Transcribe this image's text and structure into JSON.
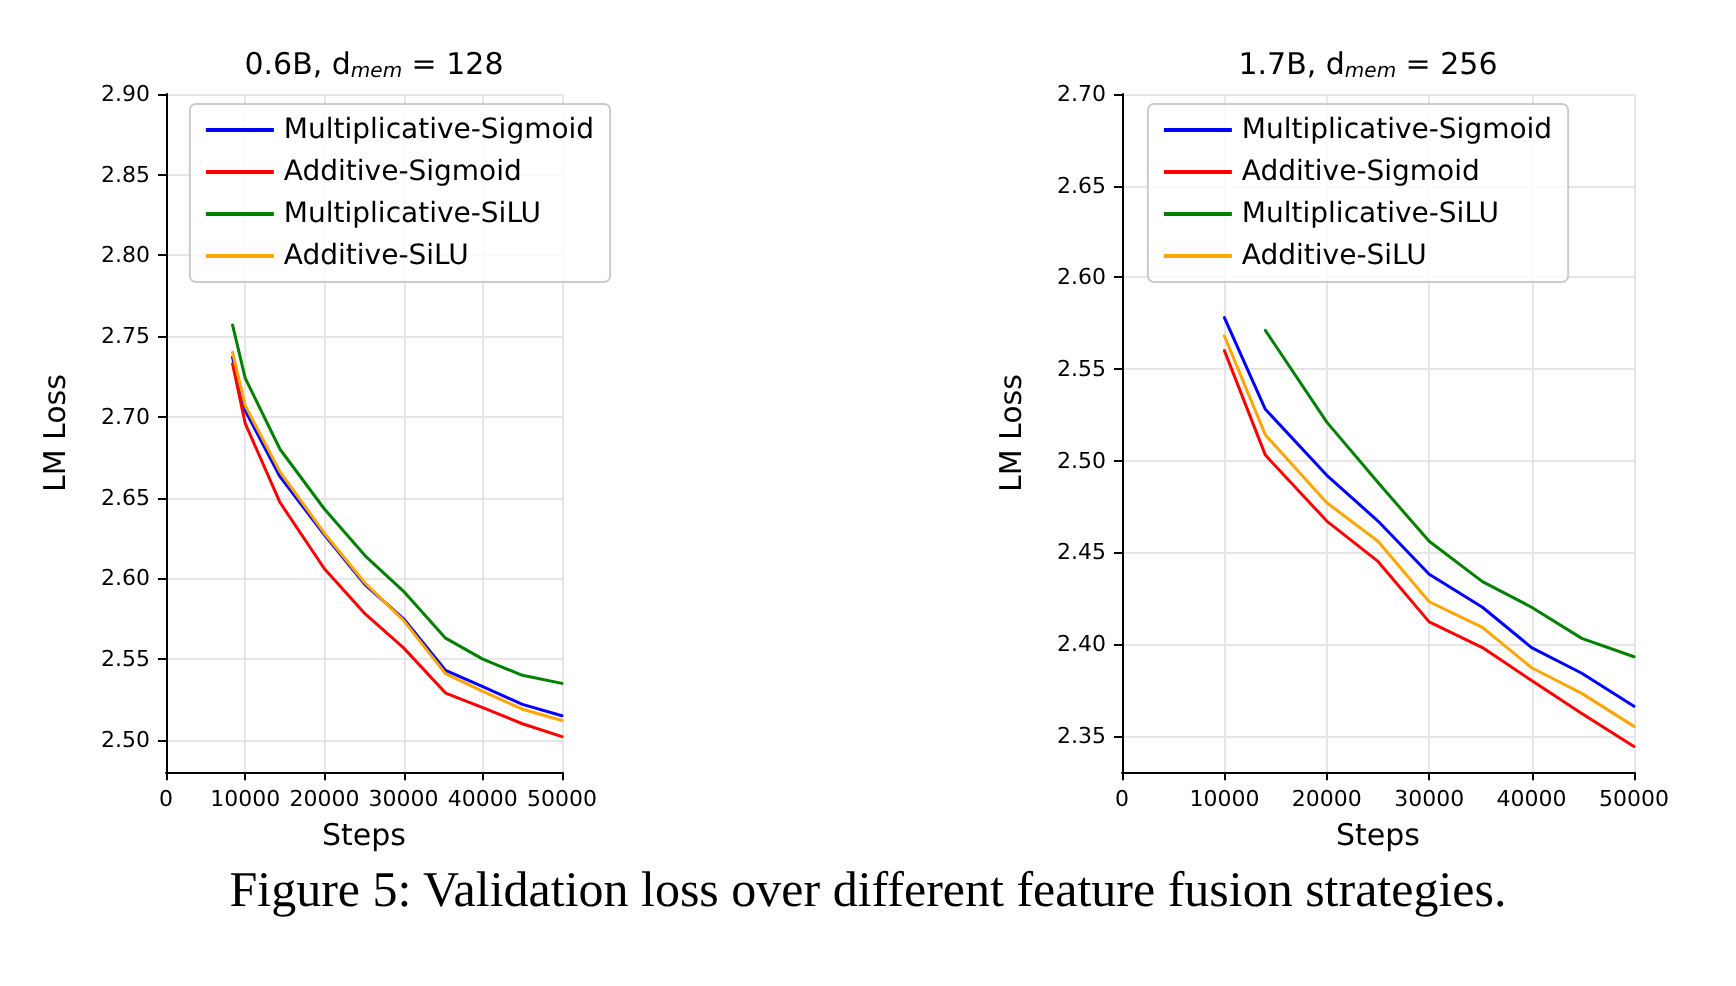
{
  "chart_data": [
    {
      "type": "line",
      "title": "0.6B, d$_{mem}$ = 128",
      "xlabel": "Steps",
      "ylabel": "LM Loss",
      "xlim": [
        0,
        50000
      ],
      "ylim": [
        2.48,
        2.9
      ],
      "xticks": [
        0,
        10000,
        20000,
        30000,
        40000,
        50000
      ],
      "yticks": [
        {
          "value": 2.5,
          "label": "2.50"
        },
        {
          "value": 2.55,
          "label": "2.55"
        },
        {
          "value": 2.6,
          "label": "2.60"
        },
        {
          "value": 2.65,
          "label": "2.65"
        },
        {
          "value": 2.7,
          "label": "2.70"
        },
        {
          "value": 2.75,
          "label": "2.75"
        },
        {
          "value": 2.8,
          "label": "2.80"
        },
        {
          "value": 2.85,
          "label": "2.85"
        },
        {
          "value": 2.9,
          "label": "2.90"
        }
      ],
      "grid": true,
      "legend": "top",
      "line_style": "solid",
      "marker": "none",
      "annotations": [
        "Figure 5: Validation loss over different feature fusion strategies."
      ],
      "x": [
        8400,
        10000,
        14400,
        20000,
        25150,
        30000,
        35300,
        40000,
        45000,
        50000
      ],
      "series": [
        {
          "name": "Multiplicative-Sigmoid",
          "color": "#0000ff",
          "values": [
            2.737,
            2.704,
            2.663,
            2.627,
            2.596,
            2.575,
            2.543,
            2.533,
            2.522,
            2.515
          ]
        },
        {
          "name": "Additive-Sigmoid",
          "color": "#ff0000",
          "values": [
            2.733,
            2.696,
            2.647,
            2.606,
            2.578,
            2.557,
            2.529,
            2.52,
            2.51,
            2.502
          ]
        },
        {
          "name": "Multiplicative-SiLU",
          "color": "#008000",
          "values": [
            2.757,
            2.724,
            2.68,
            2.643,
            2.614,
            2.592,
            2.563,
            2.55,
            2.54,
            2.535
          ]
        },
        {
          "name": "Additive-SiLU",
          "color": "#ffa500",
          "values": [
            2.74,
            2.707,
            2.666,
            2.628,
            2.597,
            2.574,
            2.541,
            2.53,
            2.519,
            2.512
          ]
        }
      ]
    },
    {
      "type": "line",
      "title": "1.7B, d$_{mem}$ = 256",
      "xlabel": "Steps",
      "ylabel": "LM Loss",
      "xlim": [
        0,
        50000
      ],
      "ylim": [
        2.33,
        2.7
      ],
      "xticks": [
        0,
        10000,
        20000,
        30000,
        40000,
        50000
      ],
      "yticks": [
        {
          "value": 2.35,
          "label": "2.35"
        },
        {
          "value": 2.4,
          "label": "2.40"
        },
        {
          "value": 2.45,
          "label": "2.45"
        },
        {
          "value": 2.5,
          "label": "2.50"
        },
        {
          "value": 2.55,
          "label": "2.55"
        },
        {
          "value": 2.6,
          "label": "2.60"
        },
        {
          "value": 2.65,
          "label": "2.65"
        },
        {
          "value": 2.7,
          "label": "2.70"
        }
      ],
      "grid": true,
      "legend": "top",
      "line_style": "solid",
      "marker": "none",
      "series": [
        {
          "name": "Multiplicative-Sigmoid",
          "color": "#0000ff",
          "x": [
            10000,
            14000,
            20000,
            25000,
            30000,
            35200,
            40000,
            44900,
            50000
          ],
          "values": [
            2.578,
            2.528,
            2.492,
            2.467,
            2.438,
            2.42,
            2.398,
            2.384,
            2.366
          ]
        },
        {
          "name": "Additive-Sigmoid",
          "color": "#ff0000",
          "x": [
            10000,
            14000,
            20000,
            25000,
            30000,
            35200,
            40000,
            44900,
            50000
          ],
          "values": [
            2.56,
            2.503,
            2.467,
            2.445,
            2.412,
            2.398,
            2.38,
            2.362,
            2.344
          ]
        },
        {
          "name": "Multiplicative-SiLU",
          "color": "#008000",
          "x": [
            14000,
            20000,
            25000,
            30000,
            35200,
            40000,
            44900,
            50000
          ],
          "values": [
            2.571,
            2.521,
            2.488,
            2.456,
            2.434,
            2.42,
            2.403,
            2.393
          ]
        },
        {
          "name": "Additive-SiLU",
          "color": "#ffa500",
          "x": [
            10000,
            14000,
            20000,
            25000,
            30000,
            35200,
            40000,
            44900,
            50000
          ],
          "values": [
            2.568,
            2.514,
            2.477,
            2.456,
            2.423,
            2.409,
            2.387,
            2.373,
            2.355
          ]
        }
      ]
    }
  ]
}
